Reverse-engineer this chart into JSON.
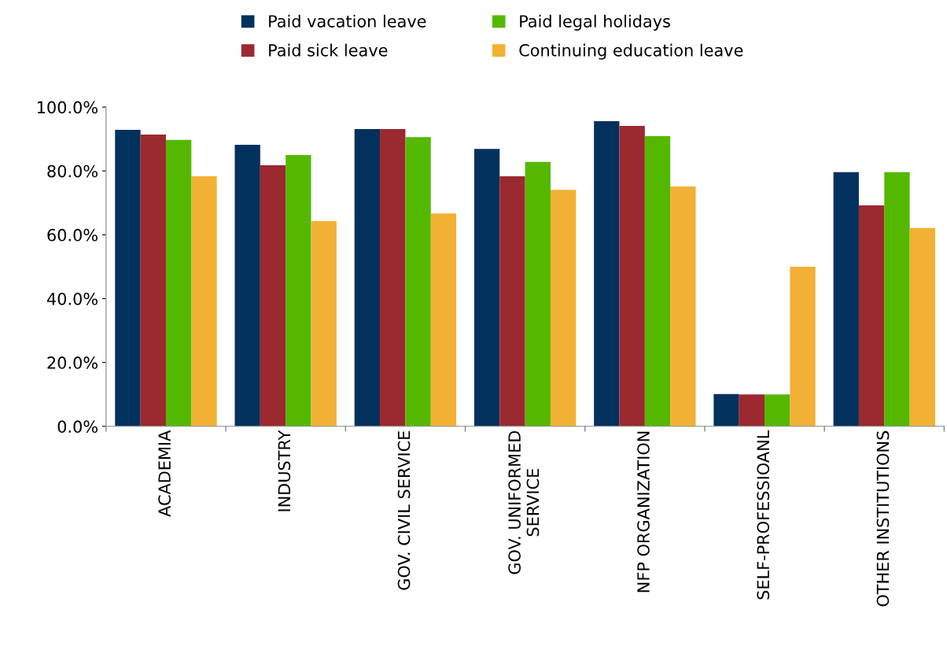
{
  "chart_data": {
    "type": "bar",
    "categories": [
      "ACADEMIA",
      "INDUSTRY",
      "GOV. CIVIL SERVICE",
      "GOV. UNIFORMED\nSERVICE",
      "NFP ORGANIZATION",
      "SELF-PROFESSIOANL",
      "OTHER INSTITUTIONS"
    ],
    "series": [
      {
        "name": "Paid vacation leave",
        "color": "#03315e",
        "values": [
          92.9,
          88.2,
          93.1,
          86.9,
          95.6,
          10.1,
          79.6
        ]
      },
      {
        "name": "Paid sick leave",
        "color": "#9c2830",
        "values": [
          91.4,
          81.8,
          93.1,
          78.3,
          94.1,
          10.0,
          69.2
        ]
      },
      {
        "name": "Paid legal holidays",
        "color": "#55b800",
        "values": [
          89.7,
          85.0,
          90.6,
          82.8,
          90.9,
          10.0,
          79.6
        ]
      },
      {
        "name": "Continuing education leave",
        "color": "#f2b134",
        "values": [
          78.3,
          64.3,
          66.7,
          74.1,
          75.1,
          50.0,
          62.1
        ]
      }
    ],
    "ylim": [
      0,
      100
    ],
    "yticks": [
      {
        "value": 0,
        "label": "0.0%"
      },
      {
        "value": 20,
        "label": "20.0%"
      },
      {
        "value": 40,
        "label": "40.0%"
      },
      {
        "value": 60,
        "label": "60.0%"
      },
      {
        "value": 80,
        "label": "80.0%"
      },
      {
        "value": 100,
        "label": "100.0%"
      }
    ],
    "grid": false,
    "legend": "top"
  }
}
